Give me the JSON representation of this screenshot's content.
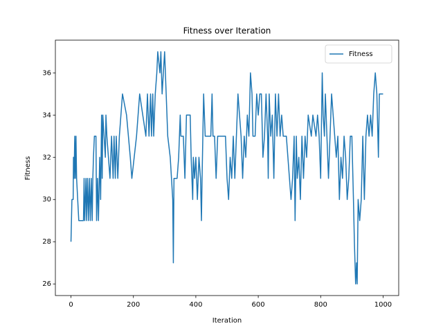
{
  "chart_data": {
    "type": "line",
    "title": "Fitness over Iteration",
    "x_label": "Iteration",
    "y_label": "Fitness",
    "x": [
      0,
      3,
      7,
      8,
      10,
      12,
      14,
      16,
      18,
      25,
      40,
      42,
      44,
      48,
      50,
      53,
      56,
      59,
      62,
      65,
      68,
      70,
      72,
      75,
      80,
      82,
      85,
      88,
      92,
      95,
      98,
      100,
      102,
      110,
      112,
      115,
      120,
      125,
      130,
      135,
      138,
      142,
      145,
      150,
      155,
      165,
      178,
      190,
      195,
      210,
      220,
      240,
      245,
      250,
      255,
      258,
      262,
      265,
      270,
      275,
      278,
      285,
      288,
      292,
      300,
      305,
      310,
      318,
      322,
      326,
      328,
      330,
      340,
      345,
      350,
      352,
      360,
      365,
      370,
      382,
      385,
      390,
      392,
      396,
      400,
      405,
      410,
      415,
      418,
      420,
      425,
      430,
      440,
      448,
      452,
      455,
      460,
      465,
      470,
      480,
      490,
      495,
      500,
      505,
      510,
      515,
      520,
      525,
      530,
      535,
      545,
      550,
      555,
      560,
      565,
      570,
      575,
      580,
      583,
      590,
      595,
      600,
      605,
      610,
      615,
      620,
      625,
      630,
      632,
      635,
      640,
      645,
      650,
      655,
      660,
      665,
      670,
      675,
      680,
      690,
      700,
      705,
      710,
      715,
      718,
      722,
      725,
      730,
      735,
      740,
      745,
      750,
      755,
      760,
      770,
      775,
      785,
      790,
      795,
      800,
      805,
      808,
      812,
      815,
      820,
      825,
      830,
      835,
      845,
      850,
      855,
      860,
      865,
      870,
      875,
      880,
      885,
      890,
      895,
      900,
      905,
      908,
      912,
      915,
      917,
      920,
      925,
      930,
      935,
      940,
      945,
      950,
      955,
      960,
      965,
      970,
      975,
      980,
      985,
      988,
      1000
    ],
    "series": [
      {
        "name": "Fitness",
        "color": "#1f77b4",
        "values": [
          28,
          30,
          30,
          32,
          31,
          33,
          31,
          33,
          31,
          29,
          29,
          31,
          29,
          31,
          29,
          31,
          29,
          31,
          29,
          31,
          29,
          31,
          32,
          33,
          33,
          29,
          31,
          29,
          32,
          30,
          34,
          31,
          34,
          32,
          34,
          33,
          32,
          31,
          33,
          31,
          33,
          31,
          33,
          31,
          33,
          35,
          34,
          32,
          31,
          33,
          35,
          33,
          35,
          33,
          35,
          33,
          35,
          33,
          35,
          36,
          37,
          36,
          37,
          35,
          37,
          35,
          33,
          32,
          31,
          30,
          27,
          31,
          31,
          32,
          34,
          33,
          33,
          31,
          34,
          34,
          32,
          30,
          32,
          31,
          32,
          30,
          32,
          31,
          29,
          31,
          35,
          33,
          33,
          33,
          35,
          33,
          33,
          31,
          33,
          33,
          33,
          33,
          31,
          30,
          32,
          31,
          33,
          31,
          33,
          35,
          33,
          31,
          33,
          32,
          34,
          33,
          36,
          35,
          33,
          33,
          35,
          34,
          35,
          35,
          32,
          33,
          35,
          33,
          31,
          35,
          33,
          34,
          31,
          35,
          33,
          35,
          33,
          34,
          33,
          33,
          31,
          30,
          31,
          33,
          29,
          33,
          31,
          32,
          30,
          33,
          31,
          33,
          32,
          34,
          33,
          34,
          33,
          34,
          33,
          31,
          36,
          34,
          33,
          35,
          33,
          31,
          33,
          35,
          33,
          32,
          33,
          30,
          32,
          31,
          33,
          32,
          30,
          31,
          33,
          33,
          30,
          28,
          26,
          27,
          26,
          30,
          29,
          30,
          33,
          30,
          33,
          34,
          33,
          34,
          33,
          35,
          36,
          35,
          32,
          35,
          35
        ]
      }
    ],
    "xlim": [
      -50,
      1050
    ],
    "ylim": [
      25.45,
      37.55
    ],
    "xticks": [
      0,
      200,
      400,
      600,
      800,
      1000
    ],
    "yticks": [
      26,
      28,
      30,
      32,
      34,
      36
    ],
    "grid": false,
    "legend": "upper right"
  }
}
